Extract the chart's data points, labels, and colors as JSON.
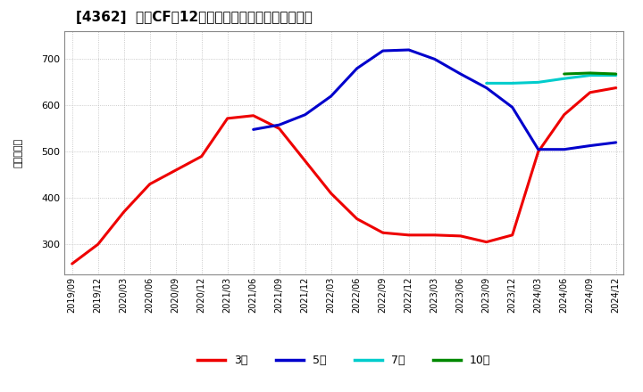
{
  "title": "[4362]  投資CFだ12か月移動合計の標準偏差の推移",
  "ylabel": "（百万円）",
  "ylim": [
    235,
    760
  ],
  "yticks": [
    300,
    400,
    500,
    600,
    700
  ],
  "background_color": "#ffffff",
  "grid_color": "#bbbbbb",
  "series": {
    "3年": {
      "color": "#ee0000",
      "x": [
        "2019/09",
        "2019/12",
        "2020/03",
        "2020/06",
        "2020/09",
        "2020/12",
        "2021/03",
        "2021/06",
        "2021/09",
        "2021/12",
        "2022/03",
        "2022/06",
        "2022/09",
        "2022/12",
        "2023/03",
        "2023/06",
        "2023/09",
        "2023/12",
        "2024/03",
        "2024/06",
        "2024/09",
        "2024/12"
      ],
      "y": [
        258,
        300,
        370,
        430,
        460,
        490,
        572,
        578,
        550,
        480,
        410,
        355,
        325,
        320,
        320,
        318,
        305,
        320,
        500,
        580,
        628,
        638
      ]
    },
    "5年": {
      "color": "#0000cc",
      "x": [
        "2021/06",
        "2021/09",
        "2021/12",
        "2022/03",
        "2022/06",
        "2022/09",
        "2022/12",
        "2023/03",
        "2023/06",
        "2023/09",
        "2023/12",
        "2024/03",
        "2024/06",
        "2024/09",
        "2024/12"
      ],
      "y": [
        548,
        558,
        580,
        620,
        680,
        718,
        720,
        700,
        668,
        638,
        596,
        505,
        505,
        513,
        520
      ]
    },
    "7年": {
      "color": "#00cccc",
      "x": [
        "2023/09",
        "2023/12",
        "2024/03",
        "2024/06",
        "2024/09",
        "2024/12"
      ],
      "y": [
        648,
        648,
        650,
        658,
        665,
        665
      ]
    },
    "10年": {
      "color": "#008800",
      "x": [
        "2024/06",
        "2024/09",
        "2024/12"
      ],
      "y": [
        668,
        670,
        668
      ]
    }
  },
  "xticks": [
    "2019/09",
    "2019/12",
    "2020/03",
    "2020/06",
    "2020/09",
    "2020/12",
    "2021/03",
    "2021/06",
    "2021/09",
    "2021/12",
    "2022/03",
    "2022/06",
    "2022/09",
    "2022/12",
    "2023/03",
    "2023/06",
    "2023/09",
    "2023/12",
    "2024/03",
    "2024/06",
    "2024/09",
    "2024/12"
  ],
  "legend_labels": [
    "3年",
    "5年",
    "7年",
    "10年"
  ],
  "legend_colors": [
    "#ee0000",
    "#0000cc",
    "#00cccc",
    "#008800"
  ],
  "linewidth": 2.2,
  "title_fontsize": 11,
  "axis_fontsize": 8,
  "legend_fontsize": 9
}
